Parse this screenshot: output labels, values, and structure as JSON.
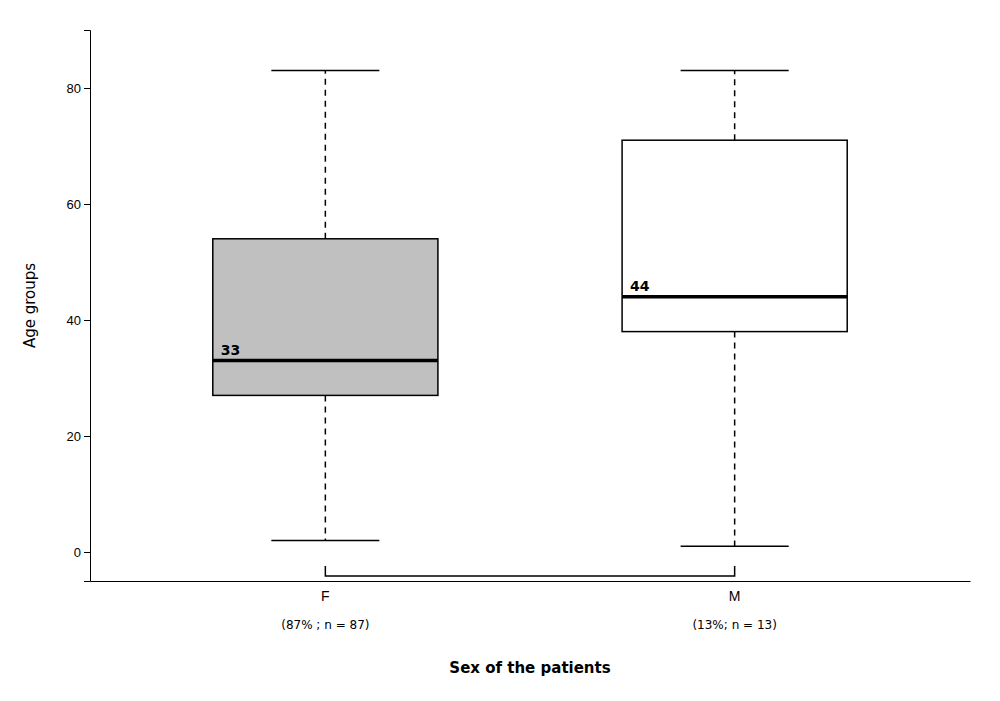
{
  "chart_data": {
    "type": "box",
    "categories": [
      "F",
      "M"
    ],
    "annotations": [
      "(87% ; n = 87)",
      "(13%; n = 13)"
    ],
    "q1": [
      27,
      38
    ],
    "median": [
      33,
      44
    ],
    "q3": [
      54,
      71
    ],
    "whisker_low": [
      2,
      1
    ],
    "whisker_high": [
      83,
      83
    ],
    "colors": [
      "#c0c0c0",
      "#ffffff"
    ],
    "data_labels": true,
    "ylabel": "Age groups",
    "xlabel": "Sex of the patients",
    "ylim": [
      -5,
      90
    ],
    "yticks": [
      0,
      20,
      40,
      60,
      80
    ],
    "grid": false
  }
}
